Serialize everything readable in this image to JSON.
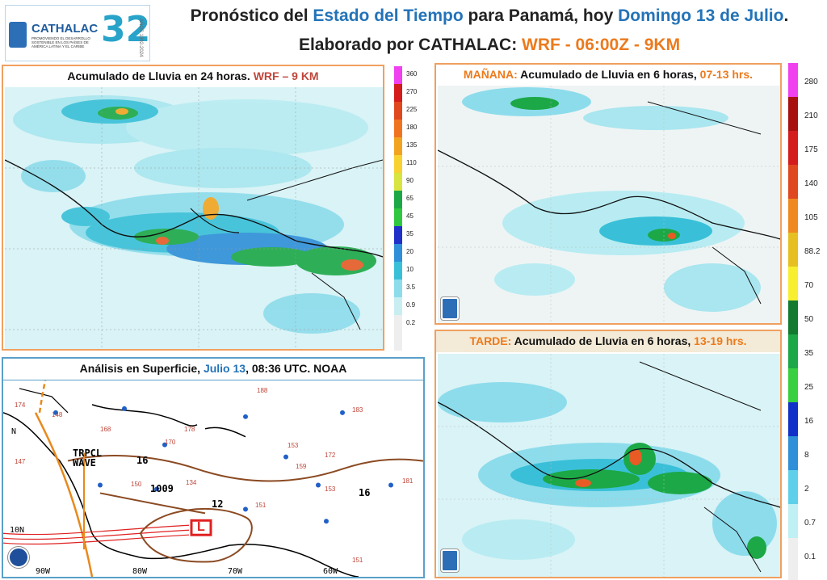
{
  "header": {
    "logo_org": "CATHALAC",
    "logo_tagline": "PROMOVIENDO EL DESARROLLO SOSTENIBLE EN LOS PAÍSES DE AMÉRICA LATINA Y EL CARIBE",
    "logo_years_num": "32",
    "logo_years_text": "AÑOS 1992-2024",
    "title_line1_prefix": "Pronóstico del ",
    "title_line1_highlight": "Estado del Tiempo",
    "title_line1_middle": " para Panamá, hoy ",
    "title_line1_date": "Domingo 13 de Julio",
    "title_line1_end": ".",
    "title_line2_prefix": "Elaborado por CATHALAC: ",
    "title_line2_model": "WRF - 06:00Z - 9KM"
  },
  "panels": {
    "rain24": {
      "title_prefix": "Acumulado de Lluvia en 24 horas. ",
      "title_model": "WRF – 9 KM",
      "colorbar_labels": [
        "360",
        "270",
        "225",
        "180",
        "135",
        "110",
        "90",
        "65",
        "45",
        "35",
        "20",
        "10",
        "3.5",
        "0.9",
        "0.2"
      ]
    },
    "morning": {
      "title_period": "MAÑANA:",
      "title_text": " Acumulado de Lluvia en 6 horas,",
      "title_hours": " 07-13 hrs."
    },
    "afternoon": {
      "title_period": "TARDE:",
      "title_text": " Acumulado de Lluvia en 6 horas,",
      "title_hours": " 13-19 hrs."
    },
    "analysis": {
      "title_prefix": "Análisis en Superficie, ",
      "title_date": "Julio 13",
      "title_suffix": ", 08:36 UTC. NOAA",
      "labels": {
        "trpcl": "TRPCL",
        "wave": "WAVE",
        "isobar_1009": "1009",
        "isobar_16_a": "16",
        "isobar_16_b": "16",
        "isobar_12": "12",
        "lat_10n": "10N",
        "lon_90w": "90W",
        "lon_80w": "80W",
        "lon_70w": "70W",
        "lon_60w": "60W",
        "n_mark": "N",
        "low_L": "L",
        "stations": [
          "174",
          "148",
          "168",
          "188",
          "183",
          "170",
          "178",
          "153",
          "172",
          "159",
          "181",
          "134",
          "150",
          "153",
          "151",
          "151",
          "147"
        ]
      }
    },
    "cb6h": {
      "labels": [
        "280",
        "210",
        "175",
        "140",
        "105",
        "88.2",
        "70",
        "50",
        "35",
        "25",
        "16",
        "8",
        "2",
        "0.7",
        "0.1"
      ]
    }
  },
  "colors": {
    "panel_border": "#f0a060",
    "title_blue": "#2373b8",
    "title_orange": "#ec7a1c",
    "model_red": "#c0463a"
  }
}
